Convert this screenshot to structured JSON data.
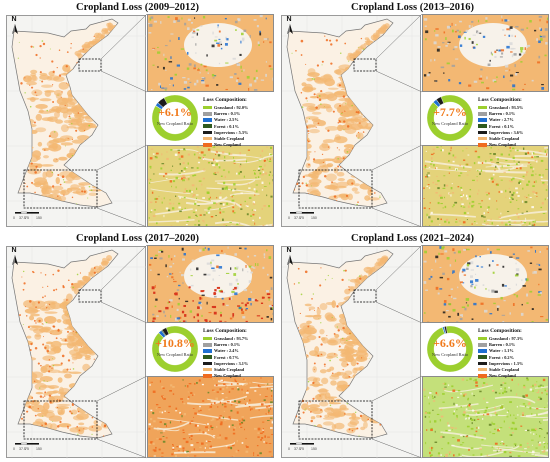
{
  "colors": {
    "stable_cropland": "#f3b873",
    "new_cropland": "#ef6b1f",
    "grassland": "#9ccf2e",
    "barren": "#a0a0a0",
    "water": "#1f6fd1",
    "forest": "#2f5a1e",
    "impervious": "#1c1c1c",
    "donut_ring": "#9ad817",
    "map_background": "#f4f4f2"
  },
  "panels": [
    {
      "title": "Cropland Loss (2009–2012)",
      "new_cropland_ratio": "+6.1%",
      "ratio_label": "New Cropland Ratio",
      "legend_title": "Loss Composition:",
      "legend": [
        {
          "label": "Grassland : 92.0%",
          "color": "#9ccf2e"
        },
        {
          "label": "Barren : 0.1%",
          "color": "#a0a0a0"
        },
        {
          "label": "Water : 2.5%",
          "color": "#1f6fd1"
        },
        {
          "label": "Forest : 0.1%",
          "color": "#2f5a1e"
        },
        {
          "label": "Impervious : 5.3%",
          "color": "#1c1c1c"
        },
        {
          "label": "Stable Cropland",
          "color": "#f3b873"
        },
        {
          "label": "New Cropland",
          "color": "#ef6b1f"
        }
      ],
      "composition": [
        92.0,
        0.1,
        2.5,
        0.1,
        5.3
      ],
      "north_label": "N",
      "scale_labels": [
        "0",
        "37.5",
        "75",
        "150"
      ]
    },
    {
      "title": "Cropland Loss (2013–2016)",
      "new_cropland_ratio": "+7.7%",
      "ratio_label": "New Cropland Ratio",
      "legend_title": "Loss Composition:",
      "legend": [
        {
          "label": "Grassland : 93.5%",
          "color": "#9ccf2e"
        },
        {
          "label": "Barren : 0.1%",
          "color": "#a0a0a0"
        },
        {
          "label": "Water : 2.7%",
          "color": "#1f6fd1"
        },
        {
          "label": "Forest : 0.1%",
          "color": "#2f5a1e"
        },
        {
          "label": "Impervious : 3.6%",
          "color": "#1c1c1c"
        },
        {
          "label": "Stable Cropland",
          "color": "#f3b873"
        },
        {
          "label": "New Cropland",
          "color": "#ef6b1f"
        }
      ],
      "composition": [
        93.5,
        0.1,
        2.7,
        0.1,
        3.6
      ],
      "north_label": "N",
      "scale_labels": [
        "0",
        "37.5",
        "75",
        "150"
      ]
    },
    {
      "title": "Cropland Loss (2017–2020)",
      "new_cropland_ratio": "+10.8%",
      "ratio_label": "New Cropland Ratio",
      "legend_title": "Loss Composition:",
      "legend": [
        {
          "label": "Grassland : 93.7%",
          "color": "#9ccf2e"
        },
        {
          "label": "Barren : 0.1%",
          "color": "#a0a0a0"
        },
        {
          "label": "Water : 2.4%",
          "color": "#1f6fd1"
        },
        {
          "label": "Forest : 0.7%",
          "color": "#2f5a1e"
        },
        {
          "label": "Impervious : 3.1%",
          "color": "#1c1c1c"
        },
        {
          "label": "Stable Cropland",
          "color": "#f3b873"
        },
        {
          "label": "New Cropland",
          "color": "#ef6b1f"
        }
      ],
      "composition": [
        93.7,
        0.1,
        2.4,
        0.7,
        3.1
      ],
      "north_label": "N",
      "scale_labels": [
        "0",
        "37.5",
        "75",
        "150"
      ]
    },
    {
      "title": "Cropland Loss (2021–2024)",
      "new_cropland_ratio": "+6.6%",
      "ratio_label": "New Cropland Ratio",
      "legend_title": "Loss Composition:",
      "legend": [
        {
          "label": "Grassland : 97.3%",
          "color": "#9ccf2e"
        },
        {
          "label": "Barren : 0.1%",
          "color": "#a0a0a0"
        },
        {
          "label": "Water : 1.1%",
          "color": "#1f6fd1"
        },
        {
          "label": "Forest : 0.2%",
          "color": "#2f5a1e"
        },
        {
          "label": "Impervious : 1.3%",
          "color": "#1c1c1c"
        },
        {
          "label": "Stable Cropland",
          "color": "#f3b873"
        },
        {
          "label": "New Cropland",
          "color": "#ef6b1f"
        }
      ],
      "composition": [
        97.3,
        0.1,
        1.1,
        0.2,
        1.3
      ],
      "north_label": "N",
      "scale_labels": [
        "0",
        "37.5",
        "75",
        "150"
      ]
    }
  ]
}
